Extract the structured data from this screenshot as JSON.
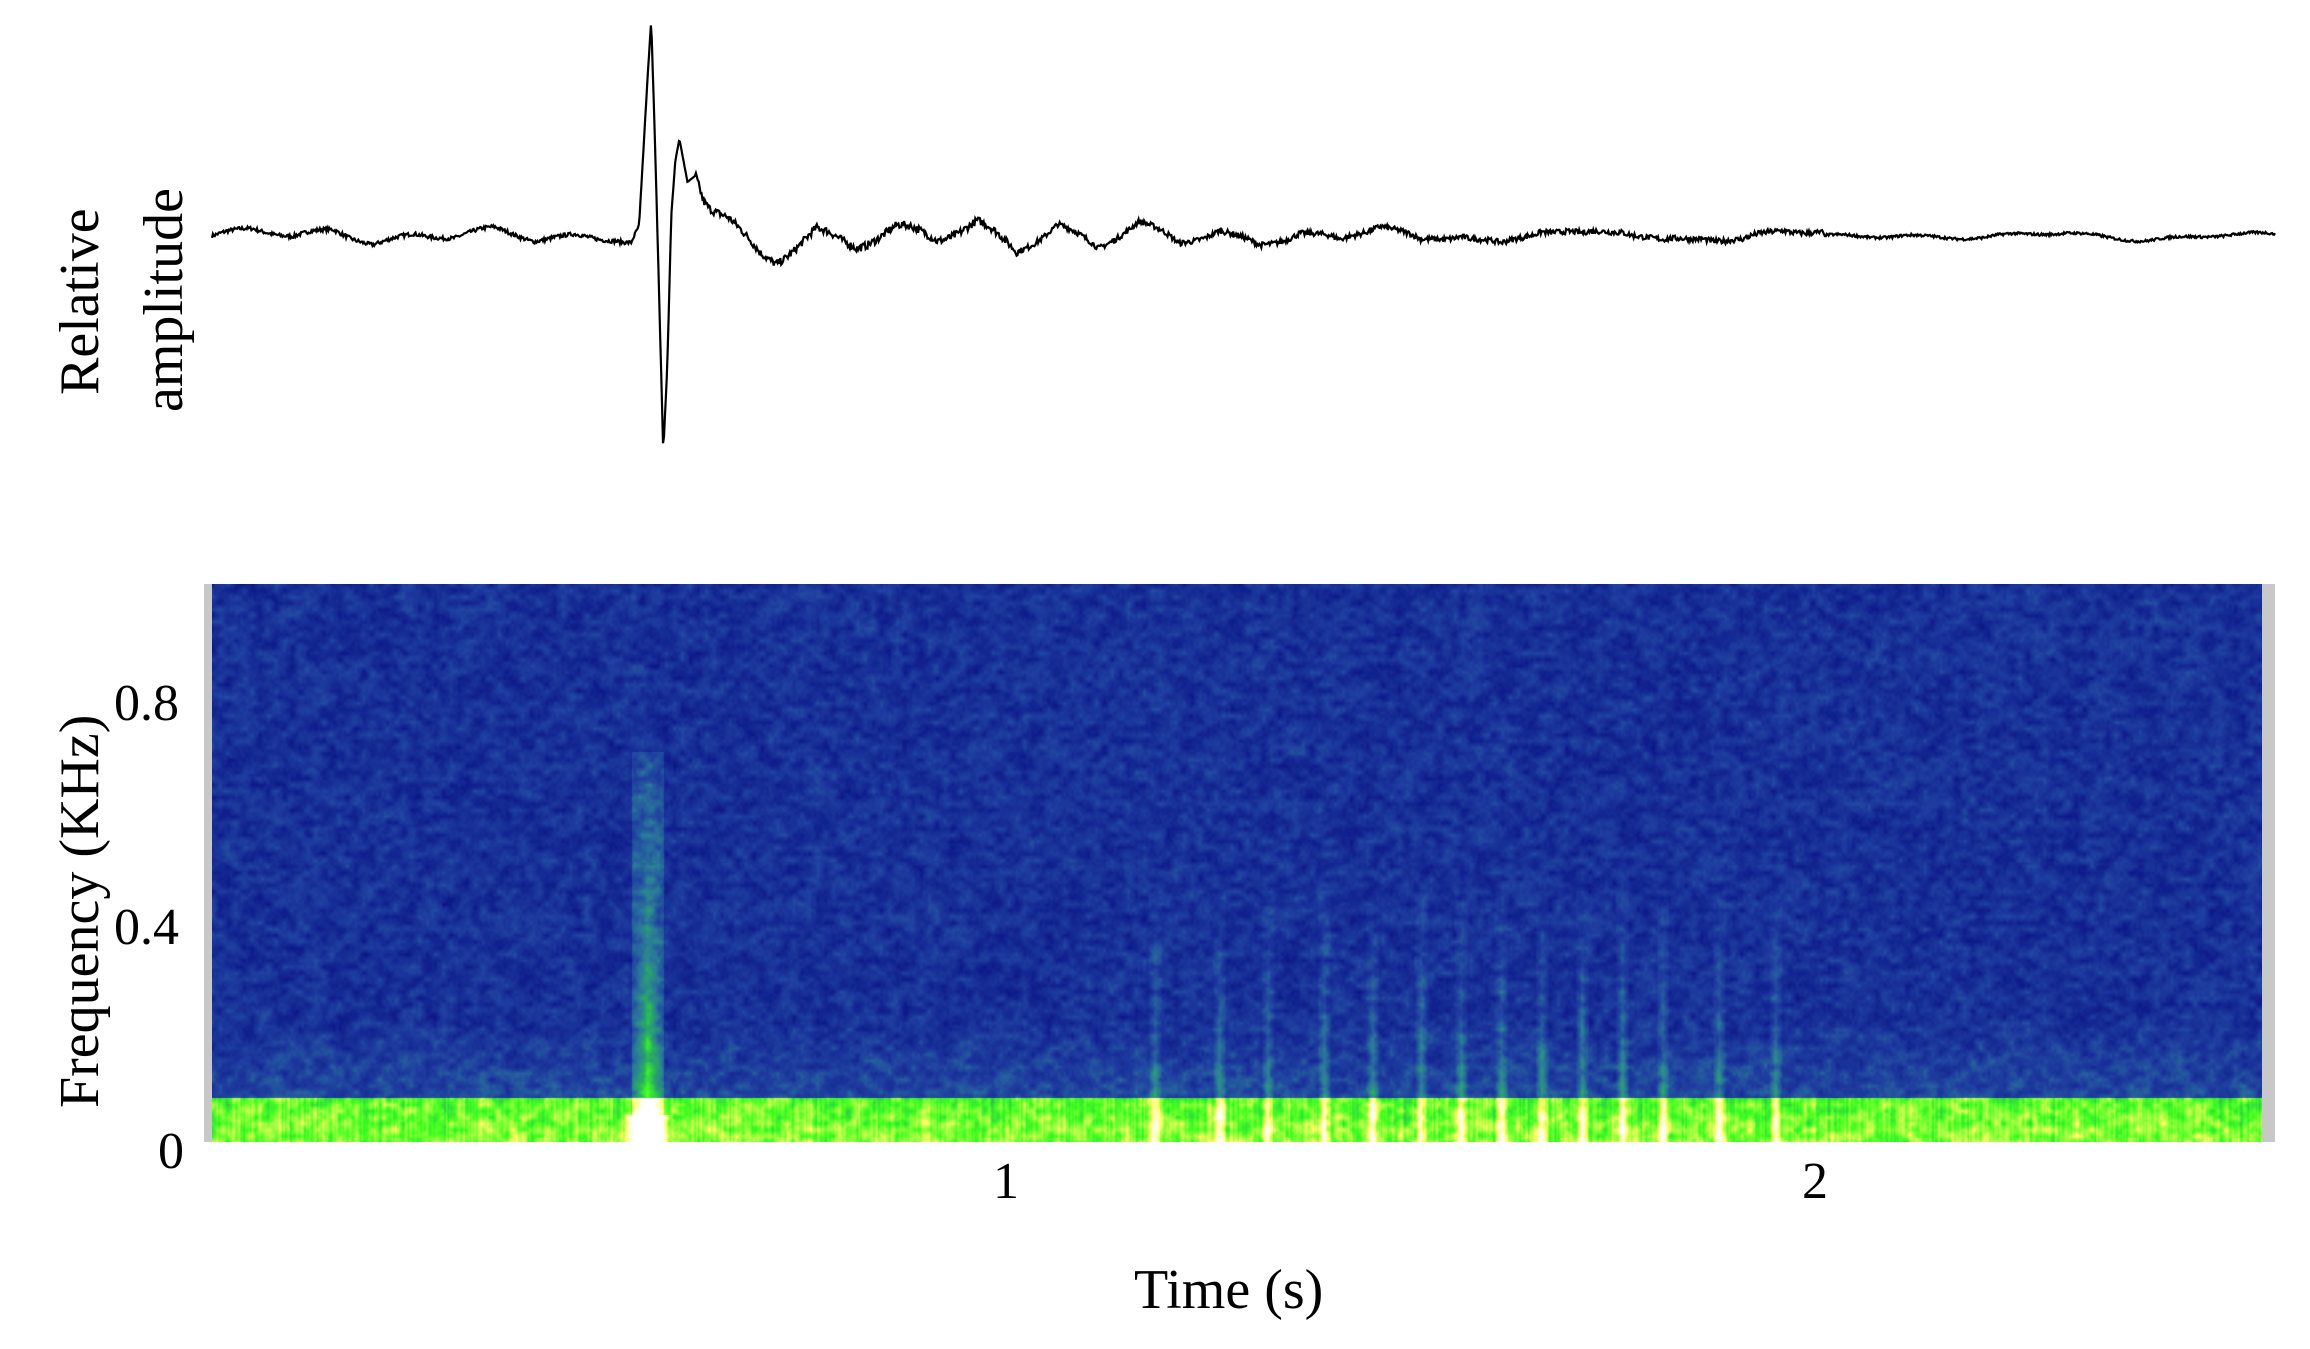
{
  "chart_data": [
    {
      "type": "line",
      "title": "",
      "ylabel": "Relative\namplitude",
      "ylabel_lines": [
        "Relative",
        "amplitude"
      ],
      "xlabel": "",
      "grid": false,
      "series": [
        {
          "x": [
            0.0,
            0.05,
            0.1,
            0.15,
            0.2,
            0.25,
            0.3,
            0.35,
            0.4,
            0.45,
            0.5,
            0.52,
            0.53,
            0.54,
            0.545,
            0.55,
            0.555,
            0.56,
            0.565,
            0.57,
            0.575,
            0.58,
            0.59,
            0.6,
            0.61,
            0.62,
            0.64,
            0.66,
            0.68,
            0.7,
            0.72,
            0.75,
            0.8,
            0.85,
            0.9,
            0.95,
            1.0,
            1.05,
            1.1,
            1.15,
            1.2,
            1.25,
            1.3,
            1.35,
            1.4,
            1.45,
            1.5,
            1.55,
            1.6,
            1.65,
            1.7,
            1.75,
            1.8,
            1.85,
            1.9,
            1.95,
            2.0,
            2.1,
            2.2,
            2.3,
            2.4,
            2.5,
            2.56
          ],
          "y": [
            0.0,
            0.02,
            -0.01,
            0.03,
            -0.02,
            0.01,
            -0.01,
            0.02,
            -0.02,
            0.01,
            0.0,
            -0.02,
            0.05,
            0.7,
            1.0,
            0.4,
            -0.3,
            -1.0,
            -0.6,
            0.1,
            0.35,
            0.45,
            0.25,
            0.28,
            0.15,
            0.1,
            0.05,
            -0.02,
            -0.08,
            -0.1,
            -0.04,
            0.05,
            -0.03,
            0.02,
            -0.04,
            0.06,
            -0.05,
            0.07,
            -0.06,
            0.05,
            -0.05,
            0.04,
            -0.03,
            0.03,
            -0.04,
            0.04,
            -0.03,
            0.03,
            -0.03,
            0.03,
            -0.02,
            0.02,
            -0.02,
            0.02,
            -0.02,
            0.02,
            -0.01,
            0.01,
            -0.01,
            0.01,
            -0.01,
            0.0,
            0.0
          ]
        }
      ],
      "xlim": [
        0,
        2.56
      ]
    },
    {
      "type": "heatmap",
      "title": "",
      "xlabel": "Time (s)",
      "ylabel": "Frequency (KHz)",
      "x_ticks": [
        "1",
        "2"
      ],
      "x_tick_values": [
        1,
        2
      ],
      "y_ticks": [
        "0",
        "0.4",
        "0.8"
      ],
      "y_tick_values": [
        0,
        0.4,
        0.8
      ],
      "xlim": [
        0,
        2.56
      ],
      "ylim": [
        0,
        1.0
      ],
      "colormap": [
        "#000000",
        "#0d1a8a",
        "#1f3fa0",
        "#2a7a9a",
        "#28b060",
        "#40ff20",
        "#ffff60",
        "#ffffff"
      ],
      "features": {
        "low_band_max_khz": 0.08,
        "impulse_time_s": 0.54,
        "impulse_max_khz": 0.7,
        "vertical_streaks_time_s": [
          1.17,
          1.25,
          1.31,
          1.38,
          1.44,
          1.5,
          1.55,
          1.6,
          1.65,
          1.7,
          1.75,
          1.8,
          1.87,
          1.94
        ]
      }
    }
  ]
}
